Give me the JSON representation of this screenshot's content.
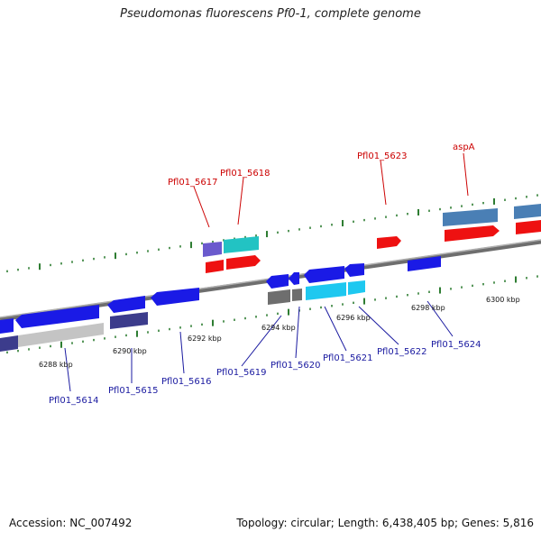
{
  "title": "Pseudomonas fluorescens Pf0-1, complete genome",
  "accession": "Accession: NC_007492",
  "summary": "Topology: circular; Length: 6,438,405 bp; Genes: 5,816",
  "colors": {
    "backbone": "#8a8a8a",
    "tick": "#2e7d32",
    "plus_label": "#cc0000",
    "minus_label": "#1a1aa0",
    "blue": "#1a1ae6",
    "red": "#ee1111",
    "steel": "#4a7fb5",
    "cyan": "#22c3c3",
    "purple": "#6a5acd",
    "navy": "#3c3c8c",
    "gray": "#6e6e6e",
    "light_gray": "#c4c4c4",
    "sky": "#1ec8f0"
  },
  "scale_ticks": [
    "6288 kbp",
    "6290 kbp",
    "6292 kbp",
    "6294 kbp",
    "6296 kbp",
    "6298 kbp",
    "6300 kbp"
  ],
  "plus_labels": [
    "Pfl01_5617",
    "Pfl01_5618",
    "Pfl01_5623",
    "aspA"
  ],
  "minus_labels": [
    "Pfl01_5614",
    "Pfl01_5615",
    "Pfl01_5616",
    "Pfl01_5619",
    "Pfl01_5620",
    "Pfl01_5621",
    "Pfl01_5622",
    "Pfl01_5624"
  ]
}
